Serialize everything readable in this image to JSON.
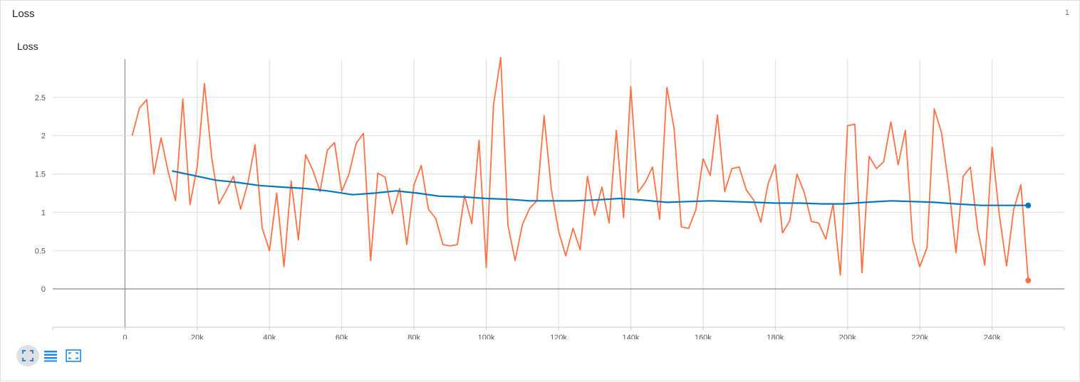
{
  "card": {
    "title": "Loss",
    "count": "1"
  },
  "chart_data": {
    "type": "line",
    "title": "Loss",
    "xlim": [
      -20000,
      260000
    ],
    "ylim": [
      -0.5,
      3.0
    ],
    "x_ticks": [
      0,
      20000,
      40000,
      60000,
      80000,
      100000,
      120000,
      140000,
      160000,
      180000,
      200000,
      220000,
      240000
    ],
    "x_tick_labels": [
      "0",
      "20k",
      "40k",
      "60k",
      "80k",
      "100k",
      "120k",
      "140k",
      "160k",
      "180k",
      "200k",
      "220k",
      "240k"
    ],
    "y_ticks": [
      0,
      0.5,
      1,
      1.5,
      2,
      2.5
    ],
    "y_tick_labels": [
      "0",
      "0.5",
      "1",
      "1.5",
      "2",
      "2.5"
    ],
    "grid": true,
    "series": [
      {
        "role": "raw",
        "color": "#ff7043",
        "x": [
          2000,
          4000,
          6000,
          8000,
          10000,
          12000,
          14000,
          16000,
          18000,
          20000,
          22000,
          24000,
          26000,
          28000,
          30000,
          32000,
          34000,
          36000,
          38000,
          40000,
          42000,
          44000,
          46000,
          48000,
          50000,
          52000,
          54000,
          56000,
          58000,
          60000,
          62000,
          64000,
          66000,
          68000,
          70000,
          72000,
          74000,
          76000,
          78000,
          80000,
          82000,
          84000,
          86000,
          88000,
          90000,
          92000,
          94000,
          96000,
          98000,
          100000,
          102000,
          104000,
          106000,
          108000,
          110000,
          112000,
          114000,
          116000,
          118000,
          120000,
          122000,
          124000,
          126000,
          128000,
          130000,
          132000,
          134000,
          136000,
          138000,
          140000,
          142000,
          144000,
          146000,
          148000,
          150000,
          152000,
          154000,
          156000,
          158000,
          160000,
          162000,
          164000,
          166000,
          168000,
          170000,
          172000,
          174000,
          176000,
          178000,
          180000,
          182000,
          184000,
          186000,
          188000,
          190000,
          192000,
          194000,
          196000,
          198000,
          200000,
          202000,
          204000,
          206000,
          208000,
          210000,
          212000,
          214000,
          216000,
          218000,
          220000,
          222000,
          224000,
          226000,
          228000,
          230000,
          232000,
          234000,
          236000,
          238000,
          240000,
          242000,
          244000,
          246000,
          248000,
          250000
        ],
        "y": [
          2.0,
          2.36,
          2.47,
          1.5,
          1.97,
          1.52,
          1.15,
          2.48,
          1.1,
          1.6,
          2.68,
          1.72,
          1.11,
          1.28,
          1.47,
          1.04,
          1.38,
          1.88,
          0.79,
          0.5,
          1.25,
          0.29,
          1.41,
          0.64,
          1.75,
          1.55,
          1.27,
          1.81,
          1.91,
          1.27,
          1.5,
          1.9,
          2.03,
          0.37,
          1.51,
          1.46,
          0.98,
          1.31,
          0.58,
          1.36,
          1.61,
          1.04,
          0.92,
          0.58,
          0.56,
          0.58,
          1.22,
          0.85,
          1.94,
          0.28,
          2.4,
          3.02,
          0.83,
          0.37,
          0.84,
          1.05,
          1.15,
          2.26,
          1.3,
          0.76,
          0.43,
          0.79,
          0.51,
          1.47,
          0.96,
          1.33,
          0.86,
          2.07,
          0.93,
          2.64,
          1.26,
          1.39,
          1.59,
          0.91,
          2.63,
          2.09,
          0.81,
          0.79,
          1.03,
          1.7,
          1.48,
          2.27,
          1.27,
          1.57,
          1.59,
          1.29,
          1.16,
          0.87,
          1.37,
          1.62,
          0.73,
          0.89,
          1.5,
          1.26,
          0.88,
          0.86,
          0.65,
          1.11,
          0.18,
          2.13,
          2.15,
          0.21,
          1.73,
          1.57,
          1.66,
          2.18,
          1.62,
          2.07,
          0.64,
          0.29,
          0.54,
          2.35,
          2.04,
          1.35,
          0.47,
          1.47,
          1.59,
          0.78,
          0.31,
          1.85,
          0.97,
          0.3,
          1.04,
          1.36,
          0.11
        ]
      },
      {
        "role": "smoothed",
        "color": "#0277bd",
        "x": [
          13000,
          19000,
          25000,
          31000,
          37000,
          43000,
          50000,
          56000,
          63000,
          69000,
          75000,
          81000,
          87000,
          94000,
          100000,
          106000,
          112000,
          118000,
          124000,
          130000,
          137000,
          143000,
          150000,
          156000,
          162000,
          168000,
          174000,
          180000,
          187000,
          193000,
          199000,
          205000,
          212000,
          218000,
          224000,
          230000,
          237000,
          243000,
          250000
        ],
        "y": [
          1.54,
          1.48,
          1.42,
          1.39,
          1.35,
          1.33,
          1.31,
          1.28,
          1.23,
          1.25,
          1.28,
          1.25,
          1.21,
          1.2,
          1.18,
          1.17,
          1.15,
          1.15,
          1.15,
          1.16,
          1.18,
          1.16,
          1.13,
          1.14,
          1.15,
          1.14,
          1.13,
          1.12,
          1.12,
          1.11,
          1.11,
          1.13,
          1.15,
          1.14,
          1.13,
          1.11,
          1.09,
          1.09,
          1.09
        ]
      }
    ]
  },
  "toolbar": {
    "buttons": [
      {
        "name": "expand-chart-button",
        "icon": "fullscreen-icon",
        "active": true
      },
      {
        "name": "toggle-y-log-button",
        "icon": "list-lines-icon",
        "active": false
      },
      {
        "name": "fit-domain-button",
        "icon": "fit-screen-icon",
        "active": false
      }
    ]
  }
}
